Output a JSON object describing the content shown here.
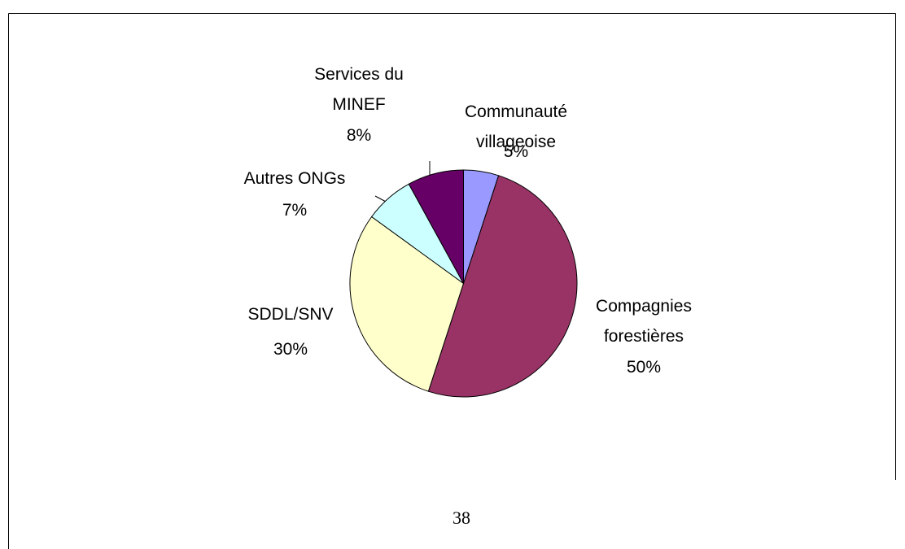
{
  "chart_data": {
    "type": "pie",
    "categories": [
      "Communauté villageoise",
      "Compagnies forestières",
      "SDDL/SNV",
      "Autres ONGs",
      "Services du MINEF"
    ],
    "values": [
      5,
      50,
      30,
      7,
      8
    ],
    "value_labels": [
      "5%",
      "50%",
      "30%",
      "7%",
      "8%"
    ],
    "colors": [
      "#9999ff",
      "#993366",
      "#ffffcc",
      "#ccffff",
      "#660066"
    ]
  },
  "page_number": "38"
}
